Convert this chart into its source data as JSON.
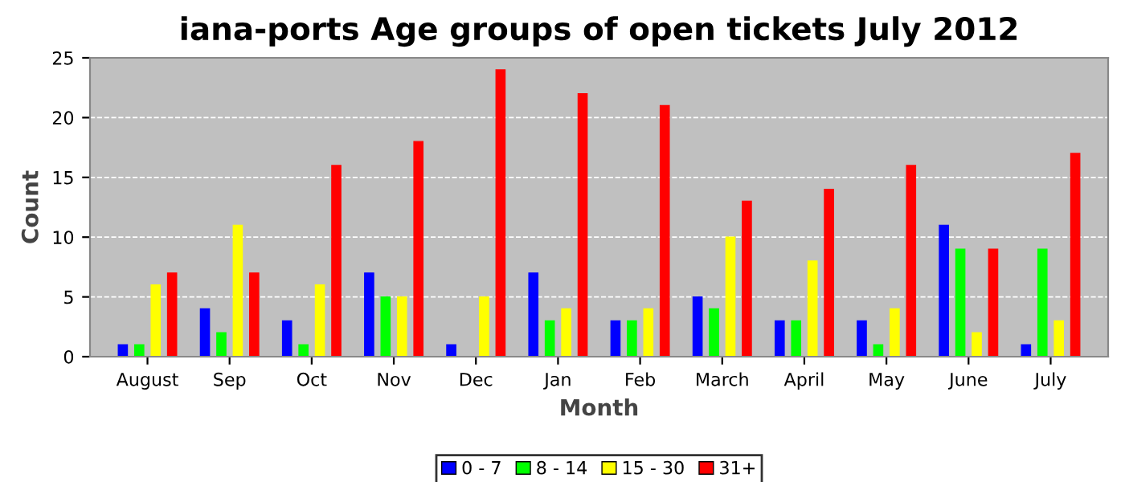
{
  "chart_data": {
    "type": "bar",
    "title": "iana-ports Age groups of open tickets July 2012",
    "xlabel": "Month",
    "ylabel": "Count",
    "categories": [
      "August",
      "Sep",
      "Oct",
      "Nov",
      "Dec",
      "Jan",
      "Feb",
      "March",
      "April",
      "May",
      "June",
      "July"
    ],
    "series": [
      {
        "name": "0 - 7",
        "color": "#0000ff",
        "values": [
          1,
          4,
          3,
          7,
          1,
          7,
          3,
          5,
          3,
          3,
          11,
          1
        ]
      },
      {
        "name": "8 - 14",
        "color": "#00ff00",
        "values": [
          1,
          2,
          1,
          5,
          0,
          3,
          3,
          4,
          3,
          1,
          9,
          9
        ]
      },
      {
        "name": "15 - 30",
        "color": "#ffff00",
        "values": [
          6,
          11,
          6,
          5,
          5,
          4,
          4,
          10,
          8,
          4,
          2,
          3
        ]
      },
      {
        "name": "31+",
        "color": "#ff0000",
        "values": [
          7,
          7,
          16,
          18,
          24,
          22,
          21,
          13,
          14,
          16,
          9,
          17
        ]
      }
    ],
    "ylim": [
      0,
      25
    ],
    "yticks": [
      0,
      5,
      10,
      15,
      20,
      25
    ],
    "grid": "y",
    "legend": "bottom"
  }
}
